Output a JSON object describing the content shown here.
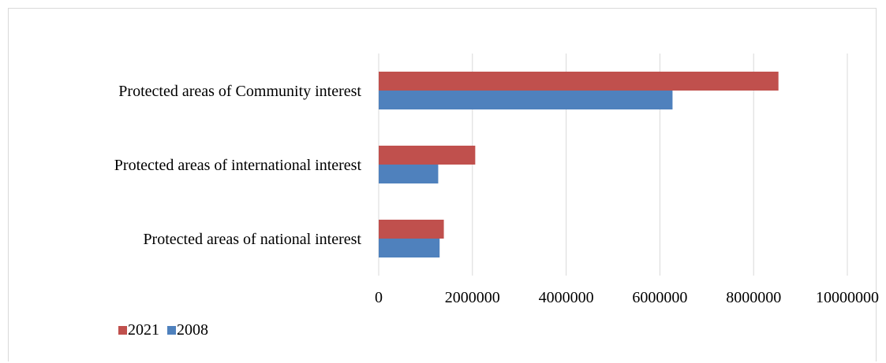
{
  "chart_data": {
    "type": "bar",
    "orientation": "horizontal",
    "title": "",
    "xlabel": "",
    "ylabel": "",
    "categories": [
      "Protected areas of Community interest",
      "Protected areas of international interest",
      "Protected areas of national interest"
    ],
    "series": [
      {
        "name": "2021",
        "color": "#c0504d",
        "values": [
          8530000,
          2060000,
          1390000
        ]
      },
      {
        "name": "2008",
        "color": "#4f81bd",
        "values": [
          6270000,
          1270000,
          1300000
        ]
      }
    ],
    "xlim": [
      0,
      10000000
    ],
    "xticks": [
      "0",
      "2000000",
      "4000000",
      "6000000",
      "8000000",
      "10000000"
    ],
    "grid": "vertical",
    "legend": "bottom-left"
  }
}
